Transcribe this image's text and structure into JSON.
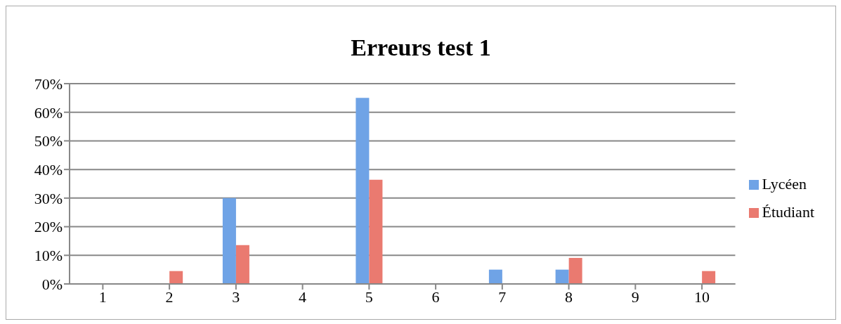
{
  "chart_data": {
    "type": "bar",
    "title": "Erreurs test 1",
    "categories": [
      "1",
      "2",
      "3",
      "4",
      "5",
      "6",
      "7",
      "8",
      "9",
      "10"
    ],
    "series": [
      {
        "name": "Lycéen",
        "color": "#6fa3e6",
        "values": [
          0,
          0,
          30,
          0,
          65,
          0,
          5,
          5,
          0,
          0
        ]
      },
      {
        "name": "Étudiant",
        "color": "#ea7a70",
        "values": [
          0,
          4.5,
          13.6,
          0,
          36.4,
          0,
          0,
          9.1,
          0,
          4.5
        ]
      }
    ],
    "ylim": [
      0,
      70
    ],
    "yticks": [
      {
        "value": 0,
        "label": "0%"
      },
      {
        "value": 10,
        "label": "10%"
      },
      {
        "value": 20,
        "label": "20%"
      },
      {
        "value": 30,
        "label": "30%"
      },
      {
        "value": 40,
        "label": "40%"
      },
      {
        "value": 50,
        "label": "50%"
      },
      {
        "value": 60,
        "label": "60%"
      },
      {
        "value": 70,
        "label": "70%"
      }
    ],
    "grid": "y",
    "legend": "right"
  }
}
